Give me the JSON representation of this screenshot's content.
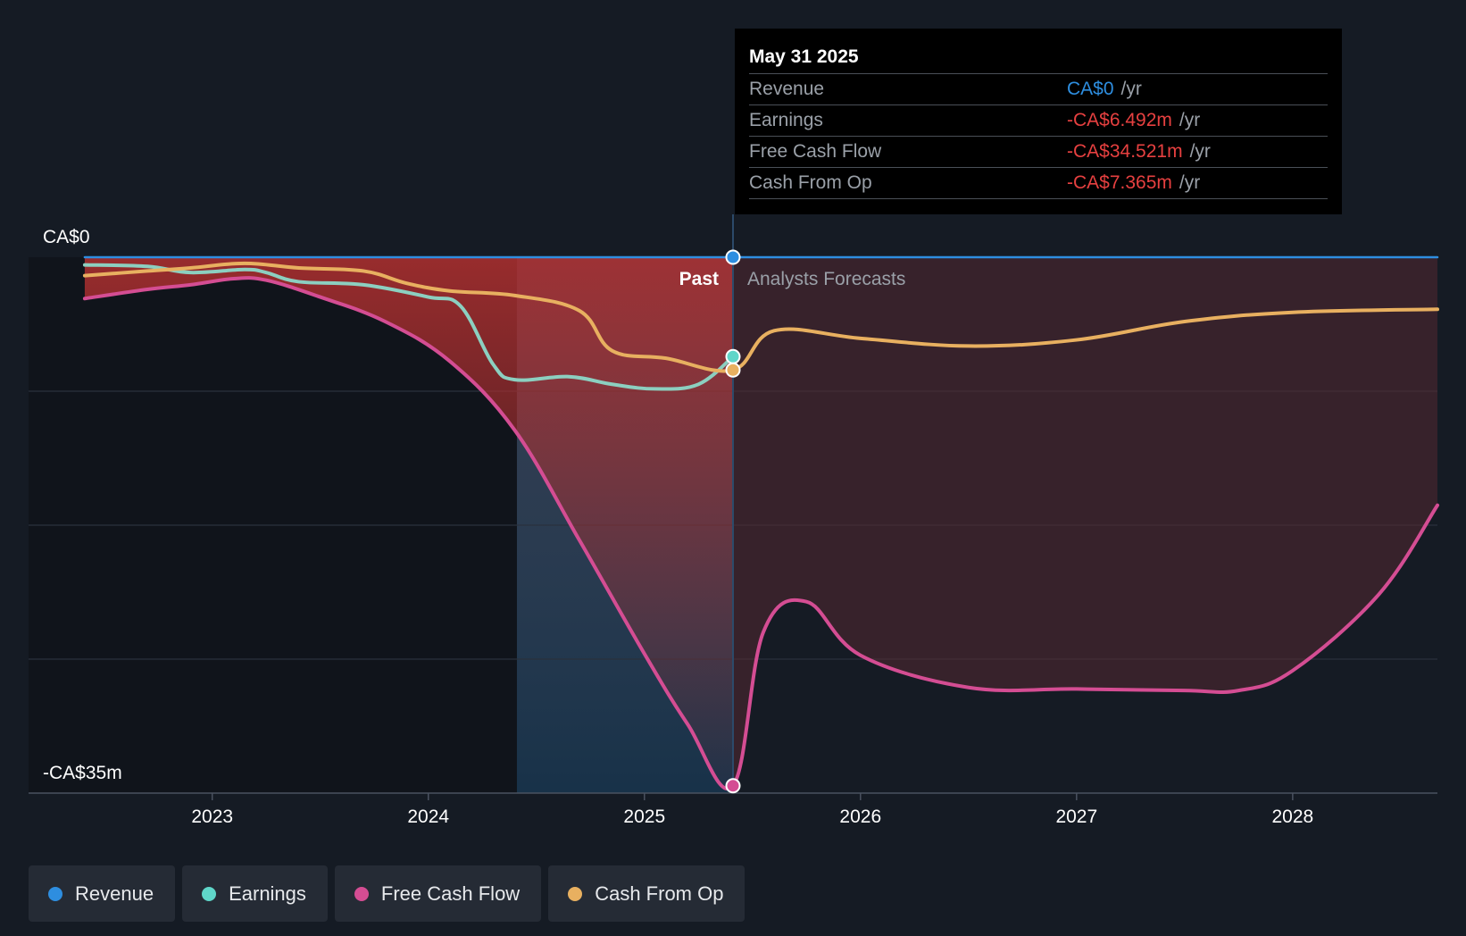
{
  "chart_data": {
    "type": "line",
    "title": "",
    "ylabel": "",
    "y_max_label": "CA$0",
    "y_min_label": "-CA$35m",
    "ylim": [
      -35,
      0
    ],
    "x_ticks": [
      {
        "x": 2023.0,
        "label": "2023"
      },
      {
        "x": 2024.0,
        "label": "2024"
      },
      {
        "x": 2025.0,
        "label": "2025"
      },
      {
        "x": 2026.0,
        "label": "2026"
      },
      {
        "x": 2027.0,
        "label": "2027"
      },
      {
        "x": 2028.0,
        "label": "2028"
      }
    ],
    "xlim": [
      2022.15,
      2028.67
    ],
    "plot_start": 2022.41,
    "past_label": "Past",
    "forecast_label": "Analysts Forecasts",
    "divider_x": 2025.41,
    "highlight_start": 2024.41,
    "series": [
      {
        "name": "Revenue",
        "color": "#2e8ee0",
        "points": [
          [
            2022.41,
            0
          ],
          [
            2023.0,
            0
          ],
          [
            2024.0,
            0
          ],
          [
            2025.0,
            0
          ],
          [
            2025.41,
            0
          ],
          [
            2026.0,
            0
          ],
          [
            2027.0,
            0
          ],
          [
            2028.0,
            0
          ],
          [
            2028.67,
            0
          ]
        ]
      },
      {
        "name": "Earnings",
        "color": "#8ccfc0",
        "points": [
          [
            2022.41,
            -0.5
          ],
          [
            2022.7,
            -0.6
          ],
          [
            2022.9,
            -1.0
          ],
          [
            2023.15,
            -0.8
          ],
          [
            2023.25,
            -1.0
          ],
          [
            2023.4,
            -1.6
          ],
          [
            2023.7,
            -1.8
          ],
          [
            2024.0,
            -2.6
          ],
          [
            2024.15,
            -3.2
          ],
          [
            2024.3,
            -7.0
          ],
          [
            2024.4,
            -8.0
          ],
          [
            2024.65,
            -7.8
          ],
          [
            2024.85,
            -8.3
          ],
          [
            2025.05,
            -8.6
          ],
          [
            2025.25,
            -8.3
          ],
          [
            2025.41,
            -6.492
          ]
        ]
      },
      {
        "name": "Free Cash Flow",
        "color": "#d44d93",
        "points": [
          [
            2022.41,
            -2.7
          ],
          [
            2022.7,
            -2.1
          ],
          [
            2022.9,
            -1.8
          ],
          [
            2023.1,
            -1.4
          ],
          [
            2023.25,
            -1.5
          ],
          [
            2023.5,
            -2.6
          ],
          [
            2023.8,
            -4.2
          ],
          [
            2024.1,
            -6.8
          ],
          [
            2024.4,
            -11.3
          ],
          [
            2024.7,
            -18.5
          ],
          [
            2025.0,
            -25.9
          ],
          [
            2025.2,
            -30.5
          ],
          [
            2025.41,
            -34.521
          ],
          [
            2025.55,
            -24.5
          ],
          [
            2025.75,
            -22.5
          ],
          [
            2026.0,
            -26.0
          ],
          [
            2026.5,
            -28.1
          ],
          [
            2027.0,
            -28.2
          ],
          [
            2027.5,
            -28.3
          ],
          [
            2027.75,
            -28.3
          ],
          [
            2028.0,
            -27.0
          ],
          [
            2028.4,
            -22.0
          ],
          [
            2028.67,
            -16.2
          ]
        ]
      },
      {
        "name": "Cash From Op",
        "color": "#e8b060",
        "points": [
          [
            2022.41,
            -1.2
          ],
          [
            2022.7,
            -0.9
          ],
          [
            2022.9,
            -0.7
          ],
          [
            2023.15,
            -0.4
          ],
          [
            2023.4,
            -0.7
          ],
          [
            2023.7,
            -0.9
          ],
          [
            2023.9,
            -1.7
          ],
          [
            2024.1,
            -2.2
          ],
          [
            2024.4,
            -2.5
          ],
          [
            2024.7,
            -3.5
          ],
          [
            2024.85,
            -6.1
          ],
          [
            2025.1,
            -6.6
          ],
          [
            2025.41,
            -7.365
          ],
          [
            2025.6,
            -4.8
          ],
          [
            2026.0,
            -5.3
          ],
          [
            2026.5,
            -5.8
          ],
          [
            2027.0,
            -5.4
          ],
          [
            2027.5,
            -4.2
          ],
          [
            2028.0,
            -3.6
          ],
          [
            2028.67,
            -3.4
          ]
        ]
      }
    ]
  },
  "tooltip": {
    "date": "May 31 2025",
    "unit": "/yr",
    "rows": [
      {
        "label": "Revenue",
        "value": "CA$0",
        "color": "#2e8ee0"
      },
      {
        "label": "Earnings",
        "value": "-CA$6.492m",
        "color": "#e64040"
      },
      {
        "label": "Free Cash Flow",
        "value": "-CA$34.521m",
        "color": "#e64040"
      },
      {
        "label": "Cash From Op",
        "value": "-CA$7.365m",
        "color": "#e64040"
      }
    ]
  },
  "legend": [
    {
      "label": "Revenue",
      "color": "#2e8ee0"
    },
    {
      "label": "Earnings",
      "color": "#5fd6c9"
    },
    {
      "label": "Free Cash Flow",
      "color": "#d44d93"
    },
    {
      "label": "Cash From Op",
      "color": "#e8b060"
    }
  ]
}
